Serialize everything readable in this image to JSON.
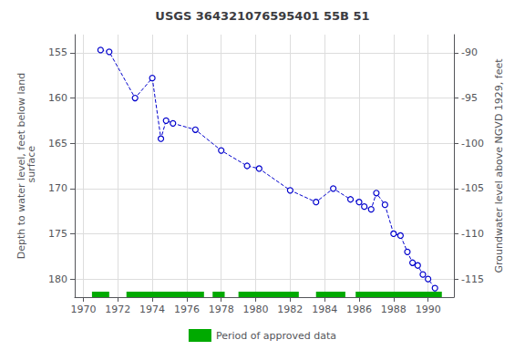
{
  "chart_data": {
    "type": "line",
    "title": "USGS 364321076595401 55B 51",
    "xlim": [
      1969.5,
      1991.5
    ],
    "xticks": [
      1970,
      1972,
      1974,
      1976,
      1978,
      1980,
      1982,
      1984,
      1986,
      1988,
      1990
    ],
    "ylabel": "Depth to water level, feet below land\n surface",
    "ylim": [
      153,
      182
    ],
    "yticks": [
      155,
      160,
      165,
      170,
      175,
      180
    ],
    "y2label": "Groundwater level above NGVD 1929, feet",
    "y2lim": [
      -88,
      -117
    ],
    "y2ticks": [
      -90,
      -95,
      -100,
      -105,
      -110,
      -115
    ],
    "grid": true,
    "legend": "bottom",
    "series": [
      {
        "type": "line",
        "color": "#0000cc",
        "marker": "circle",
        "line_style": "dashed",
        "x": [
          1971.0,
          1971.5,
          1973.0,
          1974.0,
          1974.5,
          1974.8,
          1975.2,
          1976.5,
          1978.0,
          1979.5,
          1980.2,
          1982.0,
          1983.5,
          1984.5,
          1985.5,
          1986.0,
          1986.3,
          1986.7,
          1987.0,
          1987.5,
          1988.0,
          1988.4,
          1988.8,
          1989.1,
          1989.4,
          1989.7,
          1990.0,
          1990.4
        ],
        "values": [
          154.7,
          154.9,
          160.0,
          157.8,
          164.5,
          162.5,
          162.8,
          163.5,
          165.8,
          167.5,
          167.8,
          170.2,
          171.5,
          170.0,
          171.2,
          171.5,
          172.0,
          172.3,
          170.5,
          171.8,
          175.0,
          175.2,
          177.0,
          178.2,
          178.5,
          179.5,
          180.0,
          181.0
        ]
      },
      {
        "type": "span",
        "name": "Period of approved data",
        "color": "#00aa00",
        "periods": [
          [
            1970.5,
            1971.5
          ],
          [
            1972.5,
            1977.0
          ],
          [
            1977.5,
            1978.2
          ],
          [
            1979.0,
            1982.5
          ],
          [
            1983.5,
            1985.2
          ],
          [
            1985.8,
            1990.8
          ]
        ]
      }
    ]
  }
}
